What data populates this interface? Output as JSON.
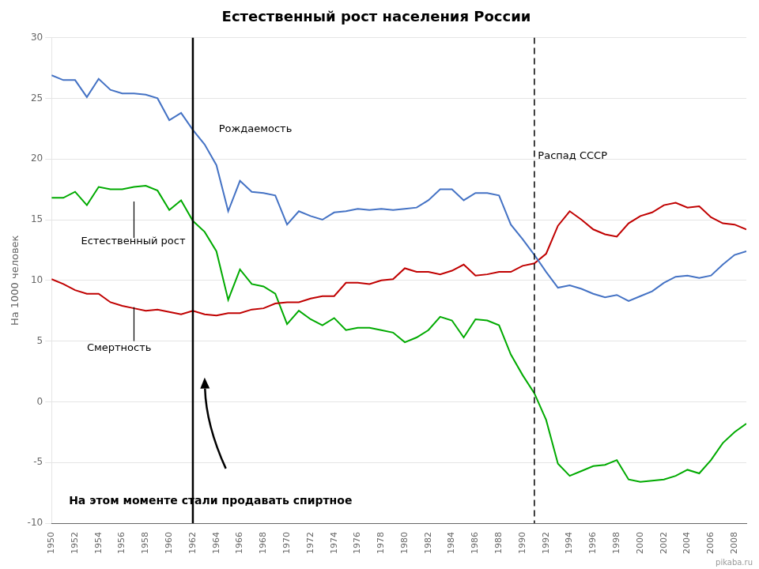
{
  "chart_data": {
    "type": "line",
    "title": "Естественный рост населения России",
    "ylabel": "На 1000 человек",
    "x": [
      1950,
      1951,
      1952,
      1953,
      1954,
      1955,
      1956,
      1957,
      1958,
      1959,
      1960,
      1961,
      1962,
      1963,
      1964,
      1965,
      1966,
      1967,
      1968,
      1969,
      1970,
      1971,
      1972,
      1973,
      1974,
      1975,
      1976,
      1977,
      1978,
      1979,
      1980,
      1981,
      1982,
      1983,
      1984,
      1985,
      1986,
      1987,
      1988,
      1989,
      1990,
      1991,
      1992,
      1993,
      1994,
      1995,
      1996,
      1997,
      1998,
      1999,
      2000,
      2001,
      2002,
      2003,
      2004,
      2005,
      2006,
      2007,
      2008,
      2009
    ],
    "xlim": [
      1950,
      2009
    ],
    "xticks": [
      1950,
      1952,
      1954,
      1956,
      1958,
      1960,
      1962,
      1964,
      1966,
      1968,
      1970,
      1972,
      1974,
      1976,
      1978,
      1980,
      1982,
      1984,
      1986,
      1988,
      1990,
      1992,
      1994,
      1996,
      1998,
      2000,
      2002,
      2004,
      2006,
      2008
    ],
    "ylim": [
      -10,
      30
    ],
    "yticks": [
      -10,
      -5,
      0,
      5,
      10,
      15,
      20,
      25,
      30
    ],
    "grid": "y",
    "series": [
      {
        "name": "Рождаемость",
        "color": "#4472c4",
        "values": [
          26.9,
          26.5,
          26.5,
          25.1,
          26.6,
          25.7,
          25.4,
          25.4,
          25.3,
          25.0,
          23.2,
          23.8,
          22.4,
          21.2,
          19.5,
          15.7,
          18.2,
          17.3,
          17.2,
          17.0,
          14.6,
          15.7,
          15.3,
          15.0,
          15.6,
          15.7,
          15.9,
          15.8,
          15.9,
          15.8,
          15.9,
          16.0,
          16.6,
          17.5,
          17.5,
          16.6,
          17.2,
          17.2,
          17.0,
          14.6,
          13.4,
          12.1,
          10.7,
          9.4,
          9.6,
          9.3,
          8.9,
          8.6,
          8.8,
          8.3,
          8.7,
          9.1,
          9.8,
          10.3,
          10.4,
          10.2,
          10.4,
          11.3,
          12.1,
          12.4
        ]
      },
      {
        "name": "Смертность",
        "color": "#c00000",
        "values": [
          10.1,
          9.7,
          9.2,
          8.9,
          8.9,
          8.2,
          7.9,
          7.7,
          7.5,
          7.6,
          7.4,
          7.2,
          7.5,
          7.2,
          7.1,
          7.3,
          7.3,
          7.6,
          7.7,
          8.1,
          8.2,
          8.2,
          8.5,
          8.7,
          8.7,
          9.8,
          9.8,
          9.7,
          10.0,
          10.1,
          11.0,
          10.7,
          10.7,
          10.5,
          10.8,
          11.3,
          10.4,
          10.5,
          10.7,
          10.7,
          11.2,
          11.4,
          12.2,
          14.5,
          15.7,
          15.0,
          14.2,
          13.8,
          13.6,
          14.7,
          15.3,
          15.6,
          16.2,
          16.4,
          16.0,
          16.1,
          15.2,
          14.7,
          14.6,
          14.2
        ]
      },
      {
        "name": "Естественный рост",
        "color": "#00aa00",
        "values": [
          16.8,
          16.8,
          17.3,
          16.2,
          17.7,
          17.5,
          17.5,
          17.7,
          17.8,
          17.4,
          15.8,
          16.6,
          14.9,
          14.0,
          12.4,
          8.4,
          10.9,
          9.7,
          9.5,
          8.9,
          6.4,
          7.5,
          6.8,
          6.3,
          6.9,
          5.9,
          6.1,
          6.1,
          5.9,
          5.7,
          4.9,
          5.3,
          5.9,
          7.0,
          6.7,
          5.3,
          6.8,
          6.7,
          6.3,
          3.9,
          2.2,
          0.7,
          -1.5,
          -5.1,
          -6.1,
          -5.7,
          -5.3,
          -5.2,
          -4.8,
          -6.4,
          -6.6,
          -6.5,
          -6.4,
          -6.1,
          -5.6,
          -5.9,
          -4.8,
          -3.4,
          -2.5,
          -1.8
        ]
      }
    ],
    "annotations": [
      {
        "text": "Распад СССР",
        "x": 1991,
        "line_style": "dashed"
      },
      {
        "text": "На этом моменте стали продавать спиртное",
        "x": 1962,
        "line_style": "solid"
      },
      {
        "text": "pikaba.ru"
      }
    ]
  }
}
